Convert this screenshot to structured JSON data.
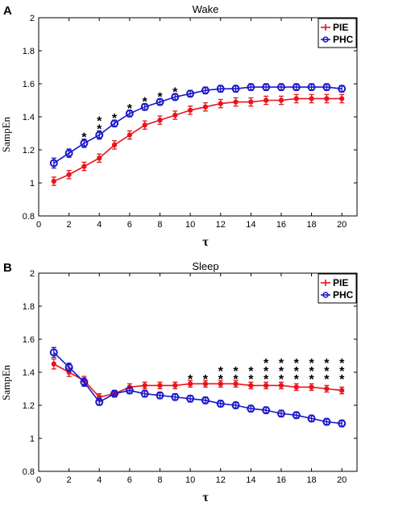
{
  "chart_data": [
    {
      "type": "line",
      "panel": "A",
      "title": "Wake",
      "xlabel": "τ",
      "ylabel": "SampEn",
      "xlim": [
        0,
        21
      ],
      "ylim": [
        0.8,
        2.0
      ],
      "xticks": [
        "0",
        "2",
        "4",
        "6",
        "8",
        "10",
        "12",
        "14",
        "16",
        "18",
        "20"
      ],
      "yticks": [
        "0.8",
        "1",
        "1.2",
        "1.4",
        "1.6",
        "1.8",
        "2"
      ],
      "legend": "top-right",
      "x": [
        1,
        2,
        3,
        4,
        5,
        6,
        7,
        8,
        9,
        10,
        11,
        12,
        13,
        14,
        15,
        16,
        17,
        18,
        19,
        20
      ],
      "series": [
        {
          "name": "PIE",
          "color": "#e8141c",
          "marker": "asterisk",
          "values": [
            1.01,
            1.05,
            1.1,
            1.15,
            1.23,
            1.29,
            1.35,
            1.38,
            1.41,
            1.44,
            1.46,
            1.48,
            1.49,
            1.49,
            1.5,
            1.5,
            1.51,
            1.51,
            1.51,
            1.51
          ],
          "errors": [
            0.025,
            0.025,
            0.025,
            0.025,
            0.025,
            0.025,
            0.025,
            0.025,
            0.025,
            0.025,
            0.025,
            0.025,
            0.025,
            0.025,
            0.025,
            0.025,
            0.025,
            0.025,
            0.025,
            0.025
          ]
        },
        {
          "name": "PHC",
          "color": "#1a17c9",
          "marker": "circle",
          "values": [
            1.12,
            1.18,
            1.24,
            1.29,
            1.36,
            1.42,
            1.46,
            1.49,
            1.52,
            1.54,
            1.56,
            1.57,
            1.57,
            1.58,
            1.58,
            1.58,
            1.58,
            1.58,
            1.58,
            1.57
          ],
          "errors": [
            0.03,
            0.025,
            0.025,
            0.025,
            0.02,
            0.02,
            0.02,
            0.02,
            0.02,
            0.02,
            0.02,
            0.02,
            0.02,
            0.02,
            0.02,
            0.02,
            0.02,
            0.02,
            0.02,
            0.02
          ]
        }
      ],
      "significance": [
        {
          "x": 3,
          "label": "*"
        },
        {
          "x": 4,
          "label": "**"
        },
        {
          "x": 5,
          "label": "*"
        },
        {
          "x": 6,
          "label": "*"
        },
        {
          "x": 7,
          "label": "*"
        },
        {
          "x": 8,
          "label": "*"
        },
        {
          "x": 9,
          "label": "*"
        }
      ]
    },
    {
      "type": "line",
      "panel": "B",
      "title": "Sleep",
      "xlabel": "τ",
      "ylabel": "SampEn",
      "xlim": [
        0,
        21
      ],
      "ylim": [
        0.8,
        2.0
      ],
      "xticks": [
        "0",
        "2",
        "4",
        "6",
        "8",
        "10",
        "12",
        "14",
        "16",
        "18",
        "20"
      ],
      "yticks": [
        "0.8",
        "1",
        "1.2",
        "1.4",
        "1.6",
        "1.8",
        "2"
      ],
      "legend": "top-right",
      "x": [
        1,
        2,
        3,
        4,
        5,
        6,
        7,
        8,
        9,
        10,
        11,
        12,
        13,
        14,
        15,
        16,
        17,
        18,
        19,
        20
      ],
      "series": [
        {
          "name": "PIE",
          "color": "#e8141c",
          "marker": "asterisk",
          "values": [
            1.45,
            1.4,
            1.35,
            1.25,
            1.27,
            1.31,
            1.32,
            1.32,
            1.32,
            1.33,
            1.33,
            1.33,
            1.33,
            1.32,
            1.32,
            1.32,
            1.31,
            1.31,
            1.3,
            1.29
          ],
          "errors": [
            0.03,
            0.025,
            0.025,
            0.02,
            0.02,
            0.02,
            0.02,
            0.02,
            0.02,
            0.02,
            0.02,
            0.02,
            0.02,
            0.02,
            0.02,
            0.02,
            0.02,
            0.02,
            0.02,
            0.02
          ]
        },
        {
          "name": "PHC",
          "color": "#1a17c9",
          "marker": "circle",
          "values": [
            1.52,
            1.43,
            1.34,
            1.22,
            1.27,
            1.29,
            1.27,
            1.26,
            1.25,
            1.24,
            1.23,
            1.21,
            1.2,
            1.18,
            1.17,
            1.15,
            1.14,
            1.12,
            1.1,
            1.09
          ],
          "errors": [
            0.03,
            0.025,
            0.025,
            0.02,
            0.02,
            0.02,
            0.02,
            0.02,
            0.02,
            0.02,
            0.02,
            0.02,
            0.02,
            0.02,
            0.02,
            0.02,
            0.02,
            0.02,
            0.02,
            0.02
          ]
        }
      ],
      "significance": [
        {
          "x": 10,
          "label": "*"
        },
        {
          "x": 11,
          "label": "*"
        },
        {
          "x": 12,
          "label": "**"
        },
        {
          "x": 13,
          "label": "**"
        },
        {
          "x": 14,
          "label": "**"
        },
        {
          "x": 15,
          "label": "***"
        },
        {
          "x": 16,
          "label": "***"
        },
        {
          "x": 17,
          "label": "***"
        },
        {
          "x": 18,
          "label": "***"
        },
        {
          "x": 19,
          "label": "***"
        },
        {
          "x": 20,
          "label": "***"
        }
      ]
    }
  ]
}
